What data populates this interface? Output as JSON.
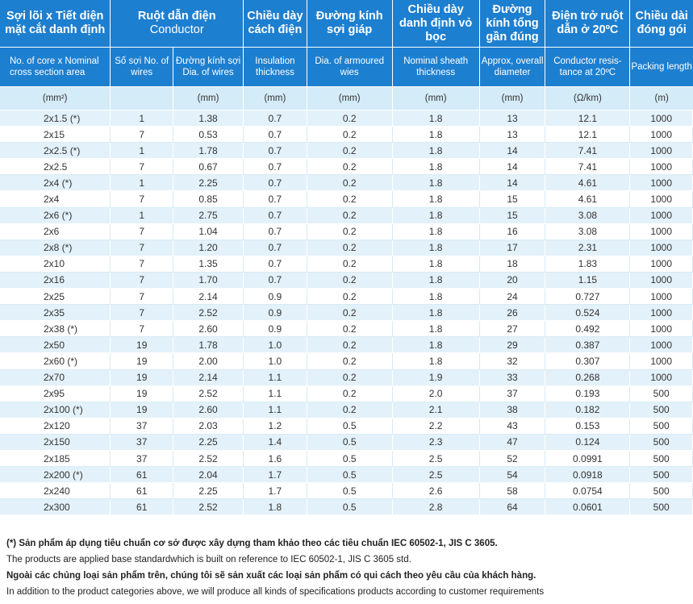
{
  "header": {
    "vn": {
      "core": "Sợi lõi x Tiết diện mặt cắt danh định",
      "conductor": "Ruột dẫn điện",
      "conductor_en": "Conductor",
      "insulation": "Chiều dày cách điện",
      "armour": "Đường kính sợi giáp",
      "sheath": "Chiều dày danh định vỏ bọc",
      "diameter": "Đường kính tổng gần đúng",
      "resistance": "Điện trở ruột dẫn ở 20ºC",
      "packing": "Chiều dài đóng gói"
    },
    "en": {
      "core": "No. of core x Nominal cross section area",
      "wires": "Số sợi No. of wires",
      "wire_dia": "Đường kính sợi Dia. of wires",
      "insulation": "Insulation thickness",
      "armour": "Dia. of armoured wies",
      "sheath": "Nominal sheath thickness",
      "diameter": "Approx, overall diameter",
      "resistance": "Conductor resis- tance at 20ºC",
      "packing": "Packing length"
    },
    "units": {
      "core": "(mm²)",
      "wires": "",
      "wire_dia": "(mm)",
      "insulation": "(mm)",
      "armour": "(mm)",
      "sheath": "(mm)",
      "diameter": "(mm)",
      "resistance": "(Ω/km)",
      "packing": "(m)"
    }
  },
  "rows": [
    [
      "2x1.5 (*)",
      "1",
      "1.38",
      "0.7",
      "0.2",
      "1.8",
      "13",
      "12.1",
      "1000"
    ],
    [
      "2x15",
      "7",
      "0.53",
      "0.7",
      "0.2",
      "1.8",
      "13",
      "12.1",
      "1000"
    ],
    [
      "2x2.5 (*)",
      "1",
      "1.78",
      "0.7",
      "0.2",
      "1.8",
      "14",
      "7.41",
      "1000"
    ],
    [
      "2x2.5",
      "7",
      "0.67",
      "0.7",
      "0.2",
      "1.8",
      "14",
      "7.41",
      "1000"
    ],
    [
      "2x4 (*)",
      "1",
      "2.25",
      "0.7",
      "0.2",
      "1.8",
      "14",
      "4.61",
      "1000"
    ],
    [
      "2x4",
      "7",
      "0.85",
      "0.7",
      "0.2",
      "1.8",
      "15",
      "4.61",
      "1000"
    ],
    [
      "2x6 (*)",
      "1",
      "2.75",
      "0.7",
      "0.2",
      "1.8",
      "15",
      "3.08",
      "1000"
    ],
    [
      "2x6",
      "7",
      "1.04",
      "0.7",
      "0.2",
      "1.8",
      "16",
      "3.08",
      "1000"
    ],
    [
      "2x8 (*)",
      "7",
      "1.20",
      "0.7",
      "0.2",
      "1.8",
      "17",
      "2.31",
      "1000"
    ],
    [
      "2x10",
      "7",
      "1.35",
      "0.7",
      "0.2",
      "1.8",
      "18",
      "1.83",
      "1000"
    ],
    [
      "2x16",
      "7",
      "1.70",
      "0.7",
      "0.2",
      "1.8",
      "20",
      "1.15",
      "1000"
    ],
    [
      "2x25",
      "7",
      "2.14",
      "0.9",
      "0.2",
      "1.8",
      "24",
      "0.727",
      "1000"
    ],
    [
      "2x35",
      "7",
      "2.52",
      "0.9",
      "0.2",
      "1.8",
      "26",
      "0.524",
      "1000"
    ],
    [
      "2x38 (*)",
      "7",
      "2.60",
      "0.9",
      "0.2",
      "1.8",
      "27",
      "0.492",
      "1000"
    ],
    [
      "2x50",
      "19",
      "1.78",
      "1.0",
      "0.2",
      "1.8",
      "29",
      "0.387",
      "1000"
    ],
    [
      "2x60 (*)",
      "19",
      "2.00",
      "1.0",
      "0.2",
      "1.8",
      "32",
      "0.307",
      "1000"
    ],
    [
      "2x70",
      "19",
      "2.14",
      "1.1",
      "0.2",
      "1.9",
      "33",
      "0.268",
      "1000"
    ],
    [
      "2x95",
      "19",
      "2.52",
      "1.1",
      "0.2",
      "2.0",
      "37",
      "0.193",
      "500"
    ],
    [
      "2x100 (*)",
      "19",
      "2.60",
      "1.1",
      "0.2",
      "2.1",
      "38",
      "0.182",
      "500"
    ],
    [
      "2x120",
      "37",
      "2.03",
      "1.2",
      "0.5",
      "2.2",
      "43",
      "0.153",
      "500"
    ],
    [
      "2x150",
      "37",
      "2.25",
      "1.4",
      "0.5",
      "2.3",
      "47",
      "0.124",
      "500"
    ],
    [
      "2x185",
      "37",
      "2.52",
      "1.6",
      "0.5",
      "2.5",
      "52",
      "0.0991",
      "500"
    ],
    [
      "2x200 (*)",
      "61",
      "2.04",
      "1.7",
      "0.5",
      "2.5",
      "54",
      "0.0918",
      "500"
    ],
    [
      "2x240",
      "61",
      "2.25",
      "1.7",
      "0.5",
      "2.6",
      "58",
      "0.0754",
      "500"
    ],
    [
      "2x300",
      "61",
      "2.52",
      "1.8",
      "0.5",
      "2.8",
      "64",
      "0.0601",
      "500"
    ]
  ],
  "notes": {
    "vn_standard": "(*) Sản phẩm áp dụng tiêu chuẩn cơ sở được xây dựng tham khảo theo các tiêu chuẩn IEC 60502-1, JIS C 3605.",
    "en_standard": "The products are applied base standardwhich is built on reference to IEC 60502-1, JIS C 3605 std.",
    "vn_custom": "Ngoài các chủng loại sản phẩm trên, chúng tôi sẽ sản xuất các loại sản phẩm có qui cách theo yêu cầu của khách hàng.",
    "en_custom": "In addition to the product categories above, we will produce all kinds of specifications products according to customer requirements"
  }
}
